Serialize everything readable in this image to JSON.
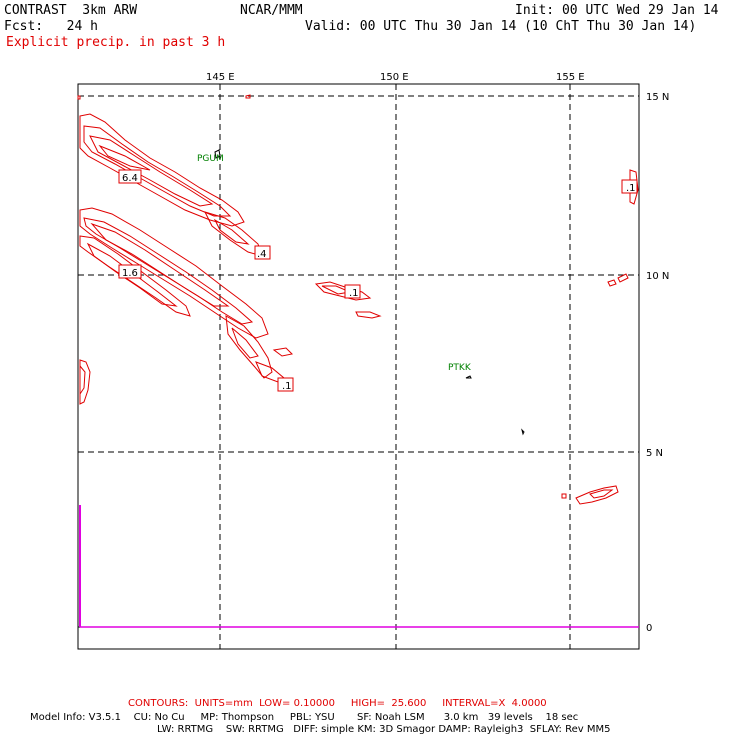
{
  "header": {
    "model": "CONTRAST  3km ARW",
    "org": "NCAR/MMM",
    "init": "Init: 00 UTC Wed 29 Jan 14",
    "fcst": "Fcst:   24 h",
    "valid": "Valid: 00 UTC Thu 30 Jan 14 (10 ChT Thu 30 Jan 14)",
    "field": "Explicit precip. in past 3 h"
  },
  "map": {
    "lon_labels": [
      "145 E",
      "150 E",
      "155 E"
    ],
    "lat_labels": [
      "15 N",
      "10 N",
      "5 N",
      "0"
    ],
    "stations": [
      "PGUM",
      "PTKK"
    ],
    "contour_labels": [
      "6.4",
      "1.6",
      ".4",
      ".1",
      ".1",
      ".1"
    ],
    "contour_color": "#e00000",
    "grid_color": "#000000",
    "station_color": "#008000",
    "highlight_color": "#e000e0"
  },
  "footer": {
    "contours": "CONTOURS:  UNITS=mm  LOW= 0.10000     HIGH=  25.600     INTERVAL=X  4.0000",
    "model_info": "Model Info: V3.5.1    CU: No Cu     MP: Thompson     PBL: YSU       SF: Noah LSM      3.0 km   39 levels    18 sec",
    "model_info2": "LW: RRTMG    SW: RRTMG   DIFF: simple KM: 3D Smagor DAMP: Rayleigh3  SFLAY: Rev MM5"
  }
}
